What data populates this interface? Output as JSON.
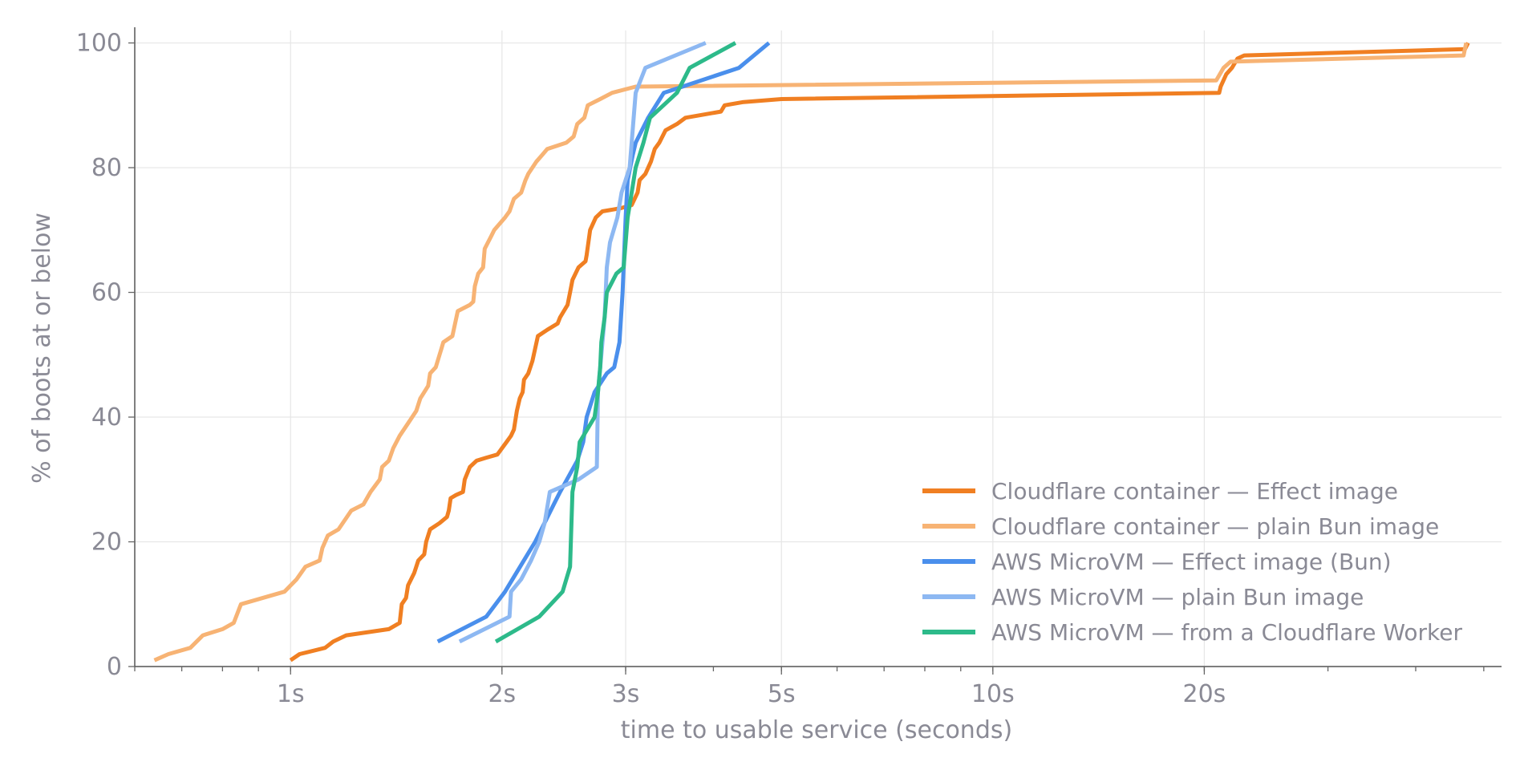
{
  "chart_data": {
    "type": "line",
    "title": "",
    "xlabel": "time to usable service (seconds)",
    "ylabel": "% of boots at or below",
    "x_scale": "log",
    "xlim": [
      0.6,
      53
    ],
    "ylim": [
      0,
      102
    ],
    "grid": true,
    "legend_position": "lower-right",
    "x_ticks": [
      {
        "value": 1,
        "label": "1s"
      },
      {
        "value": 2,
        "label": "2s"
      },
      {
        "value": 3,
        "label": "3s"
      },
      {
        "value": 5,
        "label": "5s"
      },
      {
        "value": 10,
        "label": "10s"
      },
      {
        "value": 20,
        "label": "20s"
      }
    ],
    "y_ticks": [
      {
        "value": 0,
        "label": "0"
      },
      {
        "value": 20,
        "label": "20"
      },
      {
        "value": 40,
        "label": "40"
      },
      {
        "value": 60,
        "label": "60"
      },
      {
        "value": 80,
        "label": "80"
      },
      {
        "value": 100,
        "label": "100"
      }
    ],
    "series": [
      {
        "name": "Cloudflare container — Effect image",
        "color": "#f07f22",
        "points": [
          [
            1.0,
            1
          ],
          [
            1.03,
            2
          ],
          [
            1.12,
            3
          ],
          [
            1.15,
            4
          ],
          [
            1.2,
            5
          ],
          [
            1.38,
            6
          ],
          [
            1.43,
            7
          ],
          [
            1.44,
            10
          ],
          [
            1.46,
            11
          ],
          [
            1.47,
            13
          ],
          [
            1.5,
            15
          ],
          [
            1.52,
            17
          ],
          [
            1.55,
            18
          ],
          [
            1.56,
            20
          ],
          [
            1.58,
            22
          ],
          [
            1.63,
            23
          ],
          [
            1.67,
            24
          ],
          [
            1.68,
            25
          ],
          [
            1.69,
            27
          ],
          [
            1.72,
            27.5
          ],
          [
            1.76,
            28
          ],
          [
            1.77,
            30
          ],
          [
            1.8,
            32
          ],
          [
            1.84,
            33
          ],
          [
            1.9,
            33.5
          ],
          [
            1.97,
            34
          ],
          [
            2.0,
            35
          ],
          [
            2.03,
            36
          ],
          [
            2.06,
            37
          ],
          [
            2.08,
            38
          ],
          [
            2.1,
            41
          ],
          [
            2.12,
            43
          ],
          [
            2.14,
            44
          ],
          [
            2.15,
            46
          ],
          [
            2.18,
            47
          ],
          [
            2.21,
            49
          ],
          [
            2.25,
            53
          ],
          [
            2.32,
            54
          ],
          [
            2.4,
            55
          ],
          [
            2.42,
            56
          ],
          [
            2.48,
            58
          ],
          [
            2.5,
            60
          ],
          [
            2.52,
            62
          ],
          [
            2.57,
            64
          ],
          [
            2.63,
            65
          ],
          [
            2.64,
            66
          ],
          [
            2.67,
            70
          ],
          [
            2.72,
            72
          ],
          [
            2.78,
            73
          ],
          [
            2.95,
            73.5
          ],
          [
            3.06,
            74
          ],
          [
            3.12,
            76
          ],
          [
            3.14,
            78
          ],
          [
            3.2,
            79
          ],
          [
            3.26,
            81
          ],
          [
            3.3,
            83
          ],
          [
            3.35,
            84
          ],
          [
            3.42,
            86
          ],
          [
            3.55,
            87
          ],
          [
            3.65,
            88
          ],
          [
            4.1,
            89
          ],
          [
            4.15,
            90
          ],
          [
            4.4,
            90.5
          ],
          [
            5.0,
            91
          ],
          [
            21.0,
            92
          ],
          [
            21.1,
            93
          ],
          [
            21.5,
            95
          ],
          [
            21.9,
            96
          ],
          [
            22.3,
            97.5
          ],
          [
            22.8,
            98
          ],
          [
            47,
            99
          ],
          [
            47.5,
            100
          ]
        ]
      },
      {
        "name": "Cloudflare container — plain Bun image",
        "color": "#f7b374",
        "points": [
          [
            0.64,
            1
          ],
          [
            0.67,
            2
          ],
          [
            0.72,
            3
          ],
          [
            0.75,
            5
          ],
          [
            0.8,
            6
          ],
          [
            0.83,
            7
          ],
          [
            0.85,
            10
          ],
          [
            0.98,
            12
          ],
          [
            1.02,
            14
          ],
          [
            1.05,
            16
          ],
          [
            1.1,
            17
          ],
          [
            1.11,
            19
          ],
          [
            1.13,
            21
          ],
          [
            1.17,
            22
          ],
          [
            1.22,
            25
          ],
          [
            1.27,
            26
          ],
          [
            1.3,
            28
          ],
          [
            1.34,
            30
          ],
          [
            1.35,
            32
          ],
          [
            1.38,
            33
          ],
          [
            1.4,
            35
          ],
          [
            1.43,
            37
          ],
          [
            1.47,
            39
          ],
          [
            1.51,
            41
          ],
          [
            1.53,
            43
          ],
          [
            1.55,
            44
          ],
          [
            1.57,
            45
          ],
          [
            1.58,
            47
          ],
          [
            1.61,
            48
          ],
          [
            1.63,
            50
          ],
          [
            1.64,
            51
          ],
          [
            1.65,
            52
          ],
          [
            1.7,
            53
          ],
          [
            1.73,
            57
          ],
          [
            1.8,
            58
          ],
          [
            1.82,
            58.5
          ],
          [
            1.83,
            61
          ],
          [
            1.85,
            63
          ],
          [
            1.88,
            64
          ],
          [
            1.89,
            67
          ],
          [
            1.93,
            69
          ],
          [
            1.95,
            70
          ],
          [
            2.02,
            72
          ],
          [
            2.05,
            73
          ],
          [
            2.08,
            75
          ],
          [
            2.13,
            76
          ],
          [
            2.16,
            78
          ],
          [
            2.18,
            79
          ],
          [
            2.24,
            81
          ],
          [
            2.28,
            82
          ],
          [
            2.32,
            83
          ],
          [
            2.47,
            84
          ],
          [
            2.53,
            85
          ],
          [
            2.56,
            87
          ],
          [
            2.62,
            88
          ],
          [
            2.65,
            90
          ],
          [
            2.76,
            91
          ],
          [
            2.87,
            92
          ],
          [
            3.1,
            93
          ],
          [
            20.8,
            94
          ],
          [
            21.3,
            96
          ],
          [
            21.8,
            97
          ],
          [
            46.8,
            98
          ],
          [
            47.2,
            100
          ]
        ]
      },
      {
        "name": "AWS MicroVM — Effect image (Bun)",
        "color": "#4a8fec",
        "points": [
          [
            1.62,
            4
          ],
          [
            1.9,
            8
          ],
          [
            2.02,
            12
          ],
          [
            2.23,
            20
          ],
          [
            2.37,
            26
          ],
          [
            2.42,
            28
          ],
          [
            2.56,
            33
          ],
          [
            2.61,
            36
          ],
          [
            2.64,
            40
          ],
          [
            2.71,
            44
          ],
          [
            2.82,
            47
          ],
          [
            2.89,
            48
          ],
          [
            2.94,
            52
          ],
          [
            2.97,
            60
          ],
          [
            3.0,
            72
          ],
          [
            3.02,
            78
          ],
          [
            3.07,
            82
          ],
          [
            3.1,
            84
          ],
          [
            3.23,
            88
          ],
          [
            3.4,
            92
          ],
          [
            4.35,
            96
          ],
          [
            4.8,
            100
          ]
        ]
      },
      {
        "name": "AWS MicroVM — plain Bun image",
        "color": "#8db8f2",
        "points": [
          [
            1.74,
            4
          ],
          [
            2.05,
            8
          ],
          [
            2.06,
            12
          ],
          [
            2.13,
            14
          ],
          [
            2.2,
            17
          ],
          [
            2.26,
            20
          ],
          [
            2.3,
            23
          ],
          [
            2.34,
            28
          ],
          [
            2.57,
            30
          ],
          [
            2.73,
            32
          ],
          [
            2.74,
            44
          ],
          [
            2.77,
            50
          ],
          [
            2.8,
            56
          ],
          [
            2.82,
            64
          ],
          [
            2.85,
            68
          ],
          [
            2.92,
            72
          ],
          [
            2.96,
            76
          ],
          [
            3.04,
            80
          ],
          [
            3.08,
            88
          ],
          [
            3.1,
            92
          ],
          [
            3.2,
            96
          ],
          [
            3.9,
            100
          ]
        ]
      },
      {
        "name": "AWS MicroVM — from a Cloudflare Worker",
        "color": "#2dba8a",
        "points": [
          [
            1.96,
            4
          ],
          [
            2.26,
            8
          ],
          [
            2.44,
            12
          ],
          [
            2.5,
            16
          ],
          [
            2.52,
            28
          ],
          [
            2.56,
            32
          ],
          [
            2.58,
            36
          ],
          [
            2.71,
            40
          ],
          [
            2.74,
            44
          ],
          [
            2.76,
            48
          ],
          [
            2.77,
            52
          ],
          [
            2.8,
            56
          ],
          [
            2.82,
            60
          ],
          [
            2.91,
            63
          ],
          [
            2.98,
            64
          ],
          [
            3.0,
            68
          ],
          [
            3.02,
            72
          ],
          [
            3.1,
            80
          ],
          [
            3.18,
            84
          ],
          [
            3.25,
            88
          ],
          [
            3.55,
            92
          ],
          [
            3.7,
            96
          ],
          [
            4.3,
            100
          ]
        ]
      }
    ]
  }
}
